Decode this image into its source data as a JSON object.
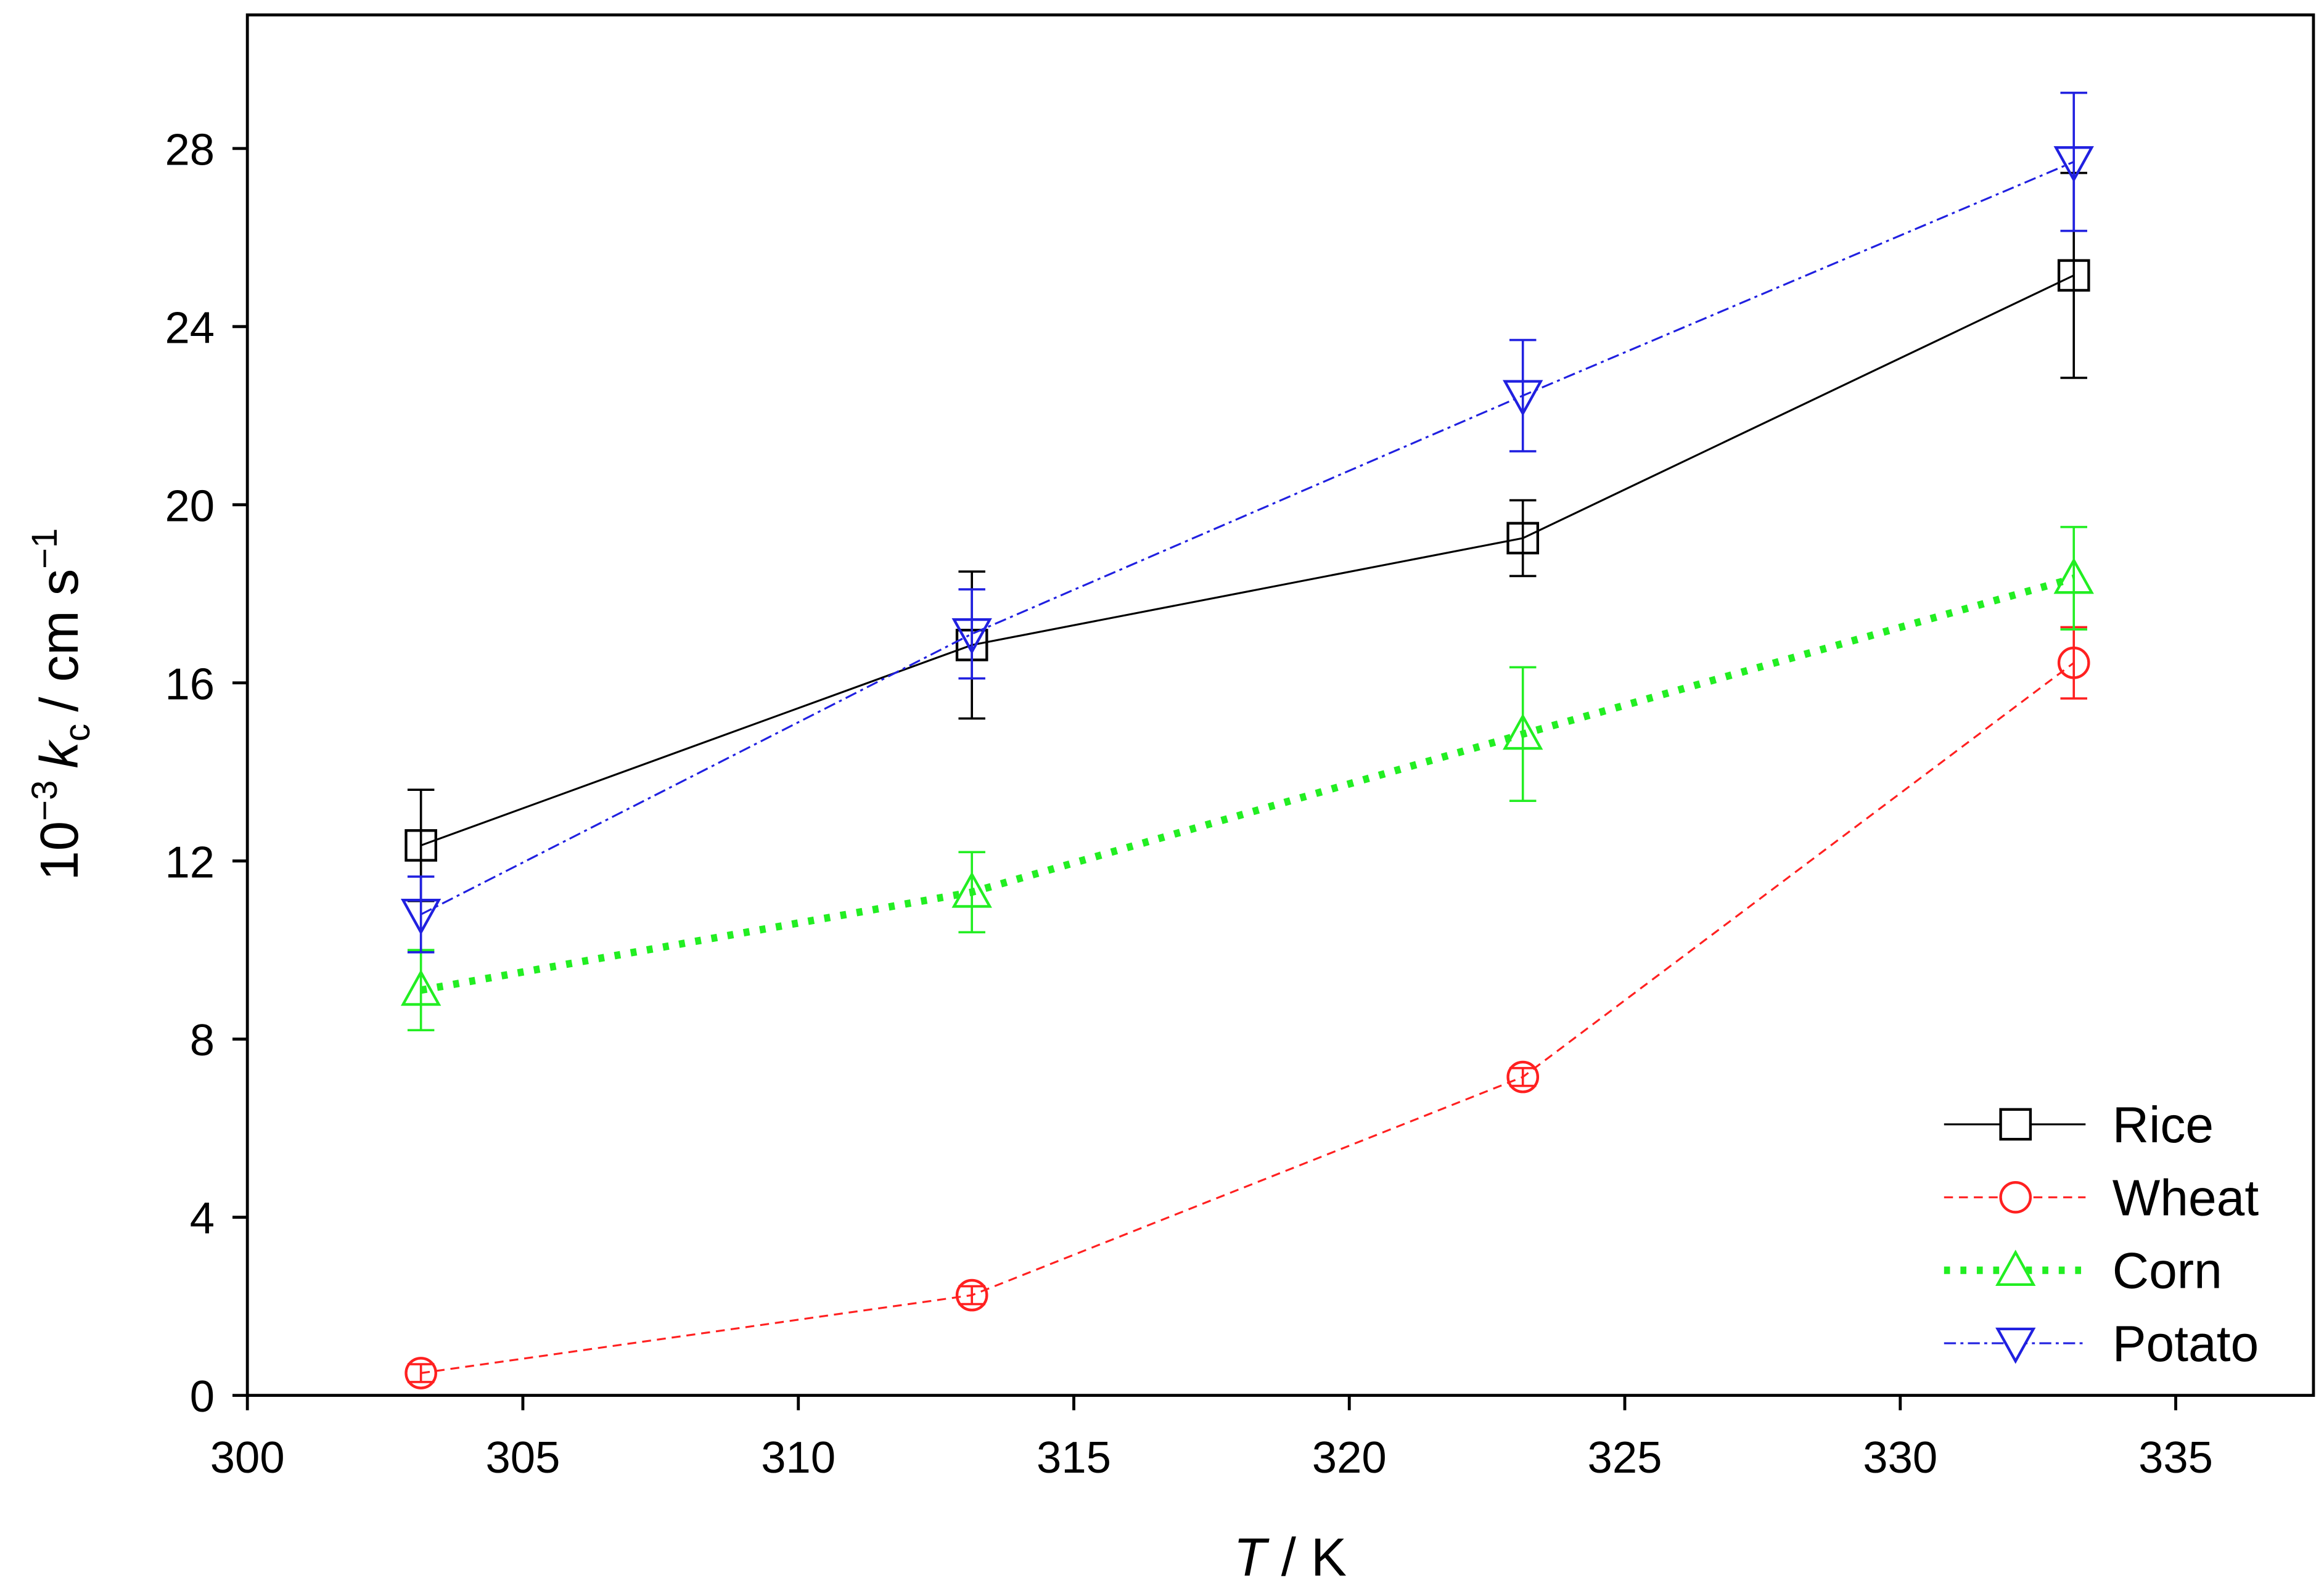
{
  "chart_data": {
    "type": "line",
    "xlabel": {
      "symbol": "T",
      "unit": "/ K"
    },
    "ylabel": {
      "base": "10",
      "exp": "−3",
      "symbol": "k",
      "sub": "c",
      "unit": "/ cm s",
      "unit_exp": "−1"
    },
    "xlim": [
      300,
      337.5
    ],
    "ylim": [
      0,
      31
    ],
    "xticks": [
      300,
      305,
      310,
      315,
      320,
      325,
      330,
      335
    ],
    "yticks": [
      0,
      4,
      8,
      12,
      16,
      20,
      24,
      28
    ],
    "legend_position": "lower-right",
    "x": [
      303.15,
      313.15,
      323.15,
      333.15
    ],
    "series": [
      {
        "name": "Rice",
        "color": "#000000",
        "marker": "square",
        "line_style": "solid",
        "values": [
          12.35,
          16.85,
          19.25,
          25.15
        ],
        "errors": [
          1.25,
          1.65,
          0.85,
          2.3
        ]
      },
      {
        "name": "Wheat",
        "color": "#ff2020",
        "marker": "circle",
        "line_style": "dashed",
        "values": [
          0.5,
          2.25,
          7.15,
          16.45
        ],
        "errors": [
          0.2,
          0.2,
          0.2,
          0.8
        ]
      },
      {
        "name": "Corn",
        "color": "#22ee22",
        "marker": "triangle-up",
        "line_style": "dotted",
        "values": [
          9.1,
          11.3,
          14.85,
          18.35
        ],
        "errors": [
          0.9,
          0.9,
          1.5,
          1.15
        ]
      },
      {
        "name": "Potato",
        "color": "#2020e0",
        "marker": "triangle-down",
        "line_style": "dash-dot",
        "values": [
          10.8,
          17.1,
          22.45,
          27.7
        ],
        "errors": [
          0.85,
          1.0,
          1.25,
          1.55
        ]
      }
    ]
  }
}
